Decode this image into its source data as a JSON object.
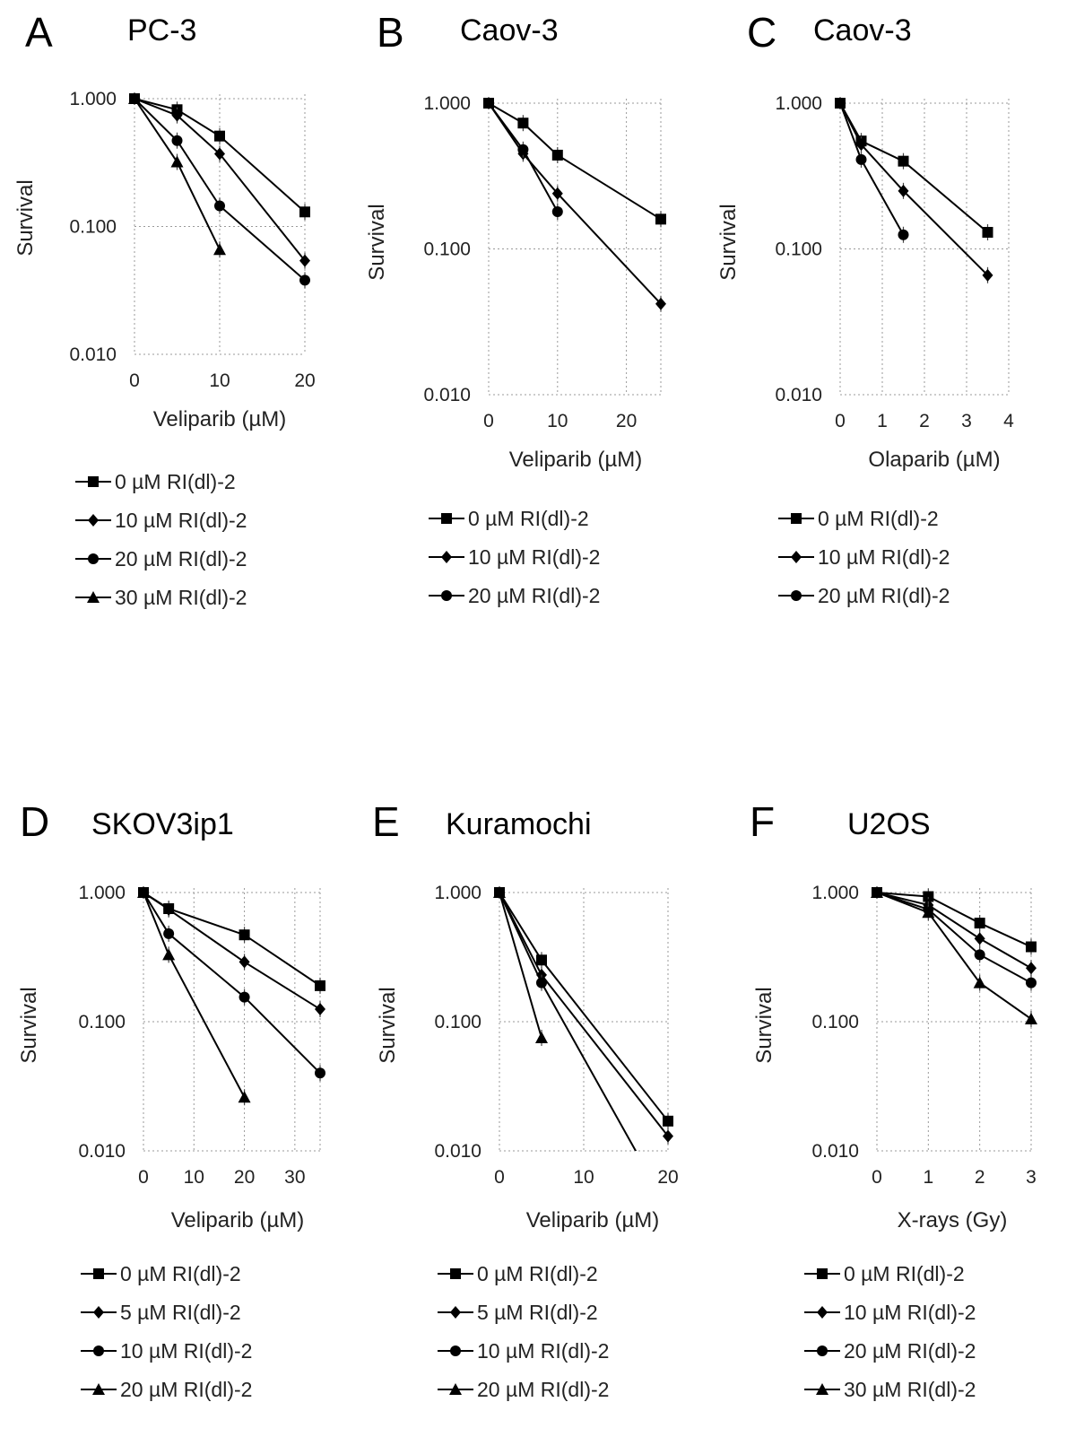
{
  "chart_data": [
    {
      "type": "line",
      "panel": "A",
      "title": "PC-3",
      "xlabel": "Veliparib (µM)",
      "ylabel": "Survival",
      "yscale": "log",
      "ylim": [
        0.01,
        1
      ],
      "yticks": [
        "0.010",
        "0.100",
        "1.000"
      ],
      "xlim": [
        0,
        20
      ],
      "xticks": [
        0,
        10,
        20
      ],
      "legend_position": "bottom",
      "series": [
        {
          "name": "0 µM RI(dl)-2",
          "marker": "square",
          "x": [
            0,
            5,
            10,
            20
          ],
          "y": [
            1.0,
            0.82,
            0.51,
            0.13
          ]
        },
        {
          "name": "10 µM RI(dl)-2",
          "marker": "diamond",
          "x": [
            0,
            5,
            10,
            20
          ],
          "y": [
            1.0,
            0.74,
            0.37,
            0.054
          ]
        },
        {
          "name": "20 µM RI(dl)-2",
          "marker": "circle",
          "x": [
            0,
            5,
            10,
            20
          ],
          "y": [
            1.0,
            0.47,
            0.145,
            0.038
          ]
        },
        {
          "name": "30 µM RI(dl)-2",
          "marker": "triangle",
          "x": [
            0,
            5,
            10
          ],
          "y": [
            1.0,
            0.32,
            0.066
          ]
        }
      ]
    },
    {
      "type": "line",
      "panel": "B",
      "title": "Caov-3",
      "xlabel": "Veliparib (µM)",
      "ylabel": "Survival",
      "yscale": "log",
      "ylim": [
        0.01,
        1
      ],
      "yticks": [
        "0.010",
        "0.100",
        "1.000"
      ],
      "xlim": [
        0,
        25
      ],
      "xticks": [
        0,
        10,
        20
      ],
      "legend_position": "bottom",
      "series": [
        {
          "name": "0 µM RI(dl)-2",
          "marker": "square",
          "x": [
            0,
            5,
            10,
            25
          ],
          "y": [
            1.0,
            0.73,
            0.44,
            0.16
          ]
        },
        {
          "name": "10 µM RI(dl)-2",
          "marker": "diamond",
          "x": [
            0,
            5,
            10,
            25
          ],
          "y": [
            1.0,
            0.45,
            0.24,
            0.042
          ]
        },
        {
          "name": "20 µM RI(dl)-2",
          "marker": "circle",
          "x": [
            0,
            5,
            10
          ],
          "y": [
            1.0,
            0.48,
            0.18
          ]
        }
      ]
    },
    {
      "type": "line",
      "panel": "C",
      "title": "Caov-3",
      "xlabel": "Olaparib (µM)",
      "ylabel": "Survival",
      "yscale": "log",
      "ylim": [
        0.01,
        1
      ],
      "yticks": [
        "0.010",
        "0.100",
        "1.000"
      ],
      "xlim": [
        0,
        4
      ],
      "xticks": [
        0,
        1,
        2,
        3,
        4
      ],
      "legend_position": "bottom",
      "series": [
        {
          "name": "0 µM RI(dl)-2",
          "marker": "square",
          "x": [
            0,
            0.5,
            1.5,
            3.5
          ],
          "y": [
            1.0,
            0.55,
            0.4,
            0.13
          ]
        },
        {
          "name": "10 µM RI(dl)-2",
          "marker": "diamond",
          "x": [
            0,
            0.5,
            1.5,
            3.5
          ],
          "y": [
            1.0,
            0.52,
            0.25,
            0.066
          ]
        },
        {
          "name": "20 µM RI(dl)-2",
          "marker": "circle",
          "x": [
            0,
            0.5,
            1.5
          ],
          "y": [
            1.0,
            0.41,
            0.125
          ]
        }
      ]
    },
    {
      "type": "line",
      "panel": "D",
      "title": "SKOV3ip1",
      "xlabel": "Veliparib (µM)",
      "ylabel": "Survival",
      "yscale": "log",
      "ylim": [
        0.01,
        1
      ],
      "yticks": [
        "0.010",
        "0.100",
        "1.000"
      ],
      "xlim": [
        0,
        35
      ],
      "xticks": [
        0,
        10,
        20,
        30
      ],
      "legend_position": "bottom",
      "series": [
        {
          "name": "0 µM RI(dl)-2",
          "marker": "square",
          "x": [
            0,
            5,
            20,
            35
          ],
          "y": [
            1.0,
            0.75,
            0.47,
            0.19
          ]
        },
        {
          "name": "5 µM RI(dl)-2",
          "marker": "diamond",
          "x": [
            0,
            5,
            20,
            35
          ],
          "y": [
            1.0,
            0.74,
            0.29,
            0.125
          ]
        },
        {
          "name": "10 µM RI(dl)-2",
          "marker": "circle",
          "x": [
            0,
            5,
            20,
            35
          ],
          "y": [
            1.0,
            0.48,
            0.155,
            0.04
          ]
        },
        {
          "name": "20 µM RI(dl)-2",
          "marker": "triangle",
          "x": [
            0,
            5,
            20
          ],
          "y": [
            1.0,
            0.33,
            0.026
          ]
        }
      ]
    },
    {
      "type": "line",
      "panel": "E",
      "title": "Kuramochi",
      "xlabel": "Veliparib (µM)",
      "ylabel": "Survival",
      "yscale": "log",
      "ylim": [
        0.01,
        1
      ],
      "yticks": [
        "0.010",
        "0.100",
        "1.000"
      ],
      "xlim": [
        0,
        20
      ],
      "xticks": [
        0,
        10,
        20
      ],
      "legend_position": "bottom",
      "series": [
        {
          "name": "0 µM RI(dl)-2",
          "marker": "square",
          "x": [
            0,
            5,
            20
          ],
          "y": [
            1.0,
            0.3,
            0.017
          ]
        },
        {
          "name": "5 µM RI(dl)-2",
          "marker": "diamond",
          "x": [
            0,
            5,
            20
          ],
          "y": [
            1.0,
            0.23,
            0.013
          ]
        },
        {
          "name": "10 µM RI(dl)-2",
          "marker": "circle",
          "x": [
            0,
            5,
            17
          ],
          "y": [
            1.0,
            0.2,
            0.008
          ]
        },
        {
          "name": "20 µM RI(dl)-2",
          "marker": "triangle",
          "x": [
            0,
            5
          ],
          "y": [
            1.0,
            0.075
          ]
        }
      ]
    },
    {
      "type": "line",
      "panel": "F",
      "title": "U2OS",
      "xlabel": "X-rays (Gy)",
      "ylabel": "Survival",
      "yscale": "log",
      "ylim": [
        0.01,
        1
      ],
      "yticks": [
        "0.010",
        "0.100",
        "1.000"
      ],
      "xlim": [
        0,
        3
      ],
      "xticks": [
        0,
        1,
        2,
        3
      ],
      "legend_position": "bottom",
      "series": [
        {
          "name": "0 µM RI(dl)-2",
          "marker": "square",
          "x": [
            0,
            1,
            2,
            3
          ],
          "y": [
            1.0,
            0.93,
            0.58,
            0.38
          ]
        },
        {
          "name": "10 µM RI(dl)-2",
          "marker": "diamond",
          "x": [
            0,
            1,
            2,
            3
          ],
          "y": [
            1.0,
            0.8,
            0.44,
            0.26
          ]
        },
        {
          "name": "20 µM RI(dl)-2",
          "marker": "circle",
          "x": [
            0,
            1,
            2,
            3
          ],
          "y": [
            1.0,
            0.74,
            0.33,
            0.2
          ]
        },
        {
          "name": "30 µM RI(dl)-2",
          "marker": "triangle",
          "x": [
            0,
            1,
            2,
            3
          ],
          "y": [
            1.0,
            0.7,
            0.2,
            0.105
          ]
        }
      ]
    }
  ]
}
